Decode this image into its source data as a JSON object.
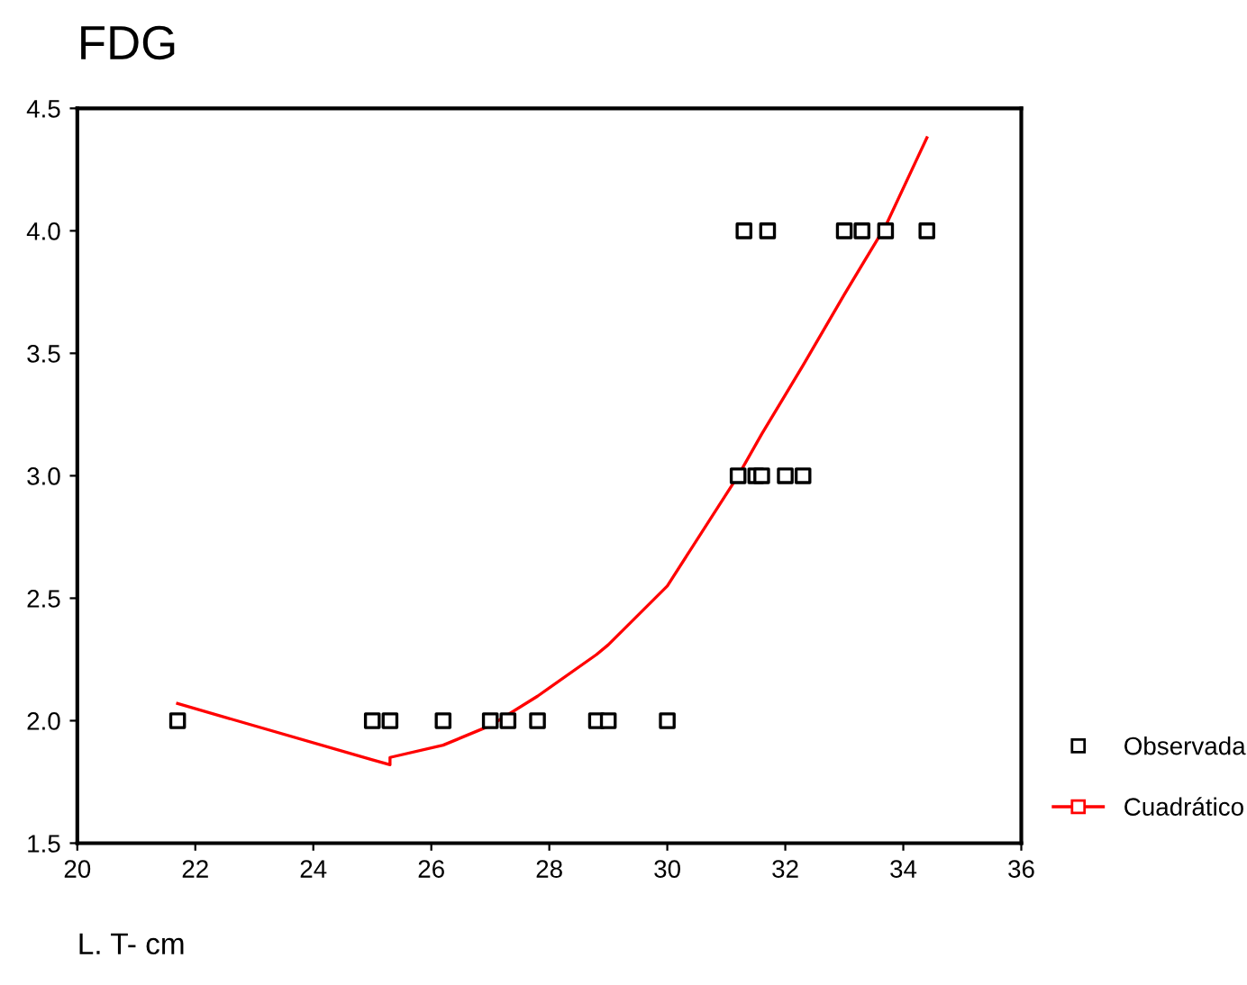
{
  "chart_data": {
    "type": "line",
    "title": "FDG",
    "xlabel": "L. T- cm",
    "xlim": [
      20,
      36
    ],
    "xticks": [
      20,
      22,
      24,
      26,
      28,
      30,
      32,
      34,
      36
    ],
    "ylim": [
      1.5,
      4.5
    ],
    "yticks": [
      {
        "value": 1.5,
        "label": "1.5"
      },
      {
        "value": 2,
        "label": "2.0"
      },
      {
        "value": 2.5,
        "label": "2.5"
      },
      {
        "value": 3,
        "label": "3.0"
      },
      {
        "value": 3.5,
        "label": "3.5"
      },
      {
        "value": 4,
        "label": "4.0"
      },
      {
        "value": 4.5,
        "label": "4.5"
      }
    ],
    "grid": false,
    "legend": "right",
    "series": [
      {
        "name": "Observada",
        "type": "scatter",
        "marker": "square",
        "color": "#000000",
        "x": [
          21.7,
          25.0,
          25.3,
          26.2,
          27.0,
          27.3,
          27.8,
          28.8,
          29.0,
          30.0,
          31.2,
          31.5,
          31.6,
          32.0,
          32.3,
          31.3,
          31.7,
          33.0,
          33.3,
          33.7,
          34.4
        ],
        "values": [
          2,
          2,
          2,
          2,
          2,
          2,
          2,
          2,
          2,
          2,
          3,
          3,
          3,
          3,
          3,
          4,
          4,
          4,
          4,
          4,
          4
        ]
      },
      {
        "name": "Cuadrático",
        "marker": "none",
        "color": "#ff0000",
        "x": [
          21.7,
          25.0,
          25.3,
          25.3,
          26.2,
          27.0,
          27.8,
          28.8,
          29.0,
          30.0,
          31.2,
          31.6,
          32.0,
          32.3,
          33.0,
          33.3,
          33.7,
          34.4
        ],
        "values": [
          2.07,
          1.84,
          1.82,
          1.85,
          1.9,
          1.98,
          2.1,
          2.27,
          2.31,
          2.55,
          3.0,
          3.17,
          3.33,
          3.45,
          3.74,
          3.86,
          4.02,
          4.38
        ]
      }
    ]
  }
}
